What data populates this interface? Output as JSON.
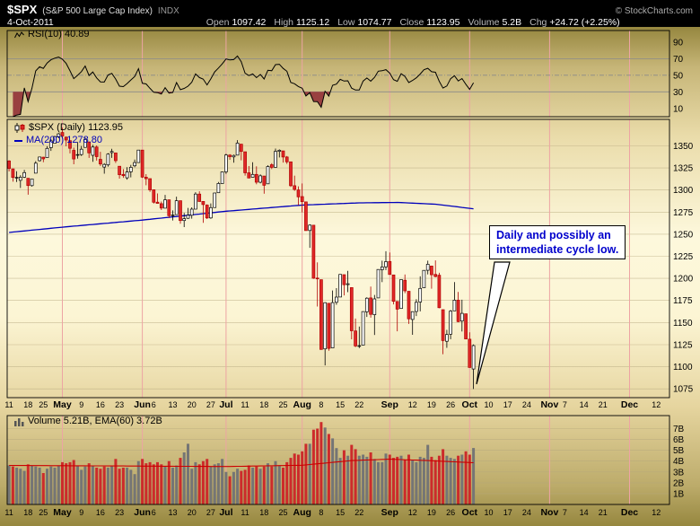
{
  "header": {
    "symbol": "$SPX",
    "symbol_desc": "(S&P 500 Large Cap Index)",
    "exchange": "INDX",
    "copyright": "© StockCharts.com",
    "date": "4-Oct-2011",
    "fields": [
      {
        "label": "Open",
        "value": "1097.42"
      },
      {
        "label": "High",
        "value": "1125.12"
      },
      {
        "label": "Low",
        "value": "1074.77"
      },
      {
        "label": "Close",
        "value": "1123.95"
      },
      {
        "label": "Volume",
        "value": "5.2B"
      },
      {
        "label": "Chg",
        "value": "+24.72 (+2.25%)"
      }
    ]
  },
  "rsi_panel": {
    "label": "RSI(10) 40.89",
    "yticks": [
      90,
      70,
      50,
      30,
      10
    ],
    "overbought": 70,
    "midline": 50,
    "oversold": 30
  },
  "price_panel": {
    "label": "$SPX (Daily) 1123.95",
    "ma_label": "MA(200) 1278.80",
    "yticks": [
      1350,
      1325,
      1300,
      1275,
      1250,
      1225,
      1200,
      1175,
      1150,
      1125,
      1100,
      1075
    ]
  },
  "volume_panel": {
    "label": "Volume 5.21B, EMA(60) 3.72B",
    "yticks": [
      {
        "v": 7,
        "label": "7B"
      },
      {
        "v": 6,
        "label": "6B"
      },
      {
        "v": 5,
        "label": "5B"
      },
      {
        "v": 4,
        "label": "4B"
      },
      {
        "v": 3,
        "label": "3B"
      },
      {
        "v": 2,
        "label": "2B"
      },
      {
        "v": 1,
        "label": "1B"
      }
    ]
  },
  "annotation": {
    "line1": "Daily and possibly an",
    "line2": "intermediate cycle low."
  },
  "xaxis": {
    "total_slots": 174,
    "month_lines": [
      14,
      35,
      57,
      77,
      100,
      121,
      142,
      163
    ],
    "ticks": [
      [
        0,
        "11",
        0
      ],
      [
        5,
        "18",
        0
      ],
      [
        9,
        "25",
        0
      ],
      [
        14,
        "May",
        1
      ],
      [
        19,
        "9",
        0
      ],
      [
        24,
        "16",
        0
      ],
      [
        29,
        "23",
        0
      ],
      [
        35,
        "Jun",
        1
      ],
      [
        38,
        "6",
        0
      ],
      [
        43,
        "13",
        0
      ],
      [
        48,
        "20",
        0
      ],
      [
        53,
        "27",
        0
      ],
      [
        57,
        "Jul",
        1
      ],
      [
        62,
        "11",
        0
      ],
      [
        67,
        "18",
        0
      ],
      [
        72,
        "25",
        0
      ],
      [
        77,
        "Aug",
        1
      ],
      [
        82,
        "8",
        0
      ],
      [
        87,
        "15",
        0
      ],
      [
        92,
        "22",
        0
      ],
      [
        100,
        "Sep",
        1
      ],
      [
        106,
        "12",
        0
      ],
      [
        111,
        "19",
        0
      ],
      [
        116,
        "26",
        0
      ],
      [
        121,
        "Oct",
        1
      ],
      [
        126,
        "10",
        0
      ],
      [
        131,
        "17",
        0
      ],
      [
        136,
        "24",
        0
      ],
      [
        142,
        "Nov",
        1
      ],
      [
        146,
        "7",
        0
      ],
      [
        151,
        "14",
        0
      ],
      [
        156,
        "21",
        0
      ],
      [
        163,
        "Dec",
        1
      ],
      [
        170,
        "12",
        0
      ]
    ]
  },
  "chart_data": {
    "type": "candlestick",
    "title": "$SPX (S&P 500 Large Cap Index) Daily",
    "date_range": {
      "start": "2011-04-11",
      "end": "2011-10-04"
    },
    "rsi": {
      "period": 10,
      "last": 40.89,
      "range": [
        0,
        100
      ]
    },
    "price": {
      "ylim": [
        1065,
        1380
      ],
      "ma200_last": 1278.8,
      "ma200_anchors": [
        [
          0,
          1252
        ],
        [
          14,
          1258
        ],
        [
          35,
          1266
        ],
        [
          57,
          1276
        ],
        [
          77,
          1283
        ],
        [
          92,
          1285.5
        ],
        [
          102,
          1286
        ],
        [
          112,
          1284
        ],
        [
          122,
          1278.8
        ]
      ],
      "ohlc": [
        [
          1333.0,
          1333.8,
          1321.1,
          1324.5
        ],
        [
          1324.0,
          1324.0,
          1309.5,
          1314.2
        ],
        [
          1314.0,
          1321.3,
          1309.2,
          1314.4
        ],
        [
          1311.0,
          1316.8,
          1302.4,
          1314.5
        ],
        [
          1314.5,
          1322.9,
          1313.7,
          1319.7
        ],
        [
          1313.3,
          1313.3,
          1294.7,
          1305.1
        ],
        [
          1305.0,
          1312.7,
          1303.9,
          1312.6
        ],
        [
          1319.1,
          1332.7,
          1319.1,
          1330.4
        ],
        [
          1333.2,
          1337.5,
          1332.3,
          1337.4
        ],
        [
          1337.2,
          1337.6,
          1331.5,
          1335.3
        ],
        [
          1336.7,
          1349.6,
          1336.7,
          1347.2
        ],
        [
          1348.0,
          1357.5,
          1344.3,
          1355.7
        ],
        [
          1353.0,
          1361.4,
          1353.0,
          1360.5
        ],
        [
          1360.1,
          1364.6,
          1358.7,
          1363.6
        ],
        [
          1365.2,
          1370.6,
          1358.6,
          1361.2
        ],
        [
          1359.8,
          1360.8,
          1349.5,
          1356.6
        ],
        [
          1355.9,
          1355.9,
          1341.5,
          1347.3
        ],
        [
          1344.9,
          1348.0,
          1329.2,
          1335.1
        ],
        [
          1340.2,
          1354.4,
          1335.6,
          1340.2
        ],
        [
          1340.2,
          1349.8,
          1338.6,
          1346.3
        ],
        [
          1348.3,
          1359.4,
          1348.3,
          1357.2
        ],
        [
          1354.5,
          1354.5,
          1336.4,
          1342.1
        ],
        [
          1339.4,
          1351.1,
          1332.0,
          1348.7
        ],
        [
          1348.7,
          1350.5,
          1333.4,
          1337.8
        ],
        [
          1334.8,
          1343.3,
          1327.3,
          1329.5
        ],
        [
          1326.1,
          1330.4,
          1318.5,
          1329.0
        ],
        [
          1328.5,
          1341.8,
          1326.6,
          1340.7
        ],
        [
          1342.4,
          1346.8,
          1336.4,
          1343.6
        ],
        [
          1342.0,
          1342.0,
          1330.7,
          1333.3
        ],
        [
          1327.0,
          1327.0,
          1312.9,
          1317.4
        ],
        [
          1317.7,
          1323.7,
          1313.9,
          1316.3
        ],
        [
          1313.9,
          1325.9,
          1311.8,
          1320.5
        ],
        [
          1320.6,
          1328.5,
          1314.4,
          1325.7
        ],
        [
          1327.4,
          1334.6,
          1325.7,
          1331.1
        ],
        [
          1331.1,
          1345.2,
          1331.1,
          1345.2
        ],
        [
          1345.2,
          1345.2,
          1313.7,
          1314.6
        ],
        [
          1314.6,
          1318.0,
          1305.4,
          1312.9
        ],
        [
          1312.9,
          1312.9,
          1297.9,
          1300.2
        ],
        [
          1300.3,
          1300.3,
          1284.7,
          1286.2
        ],
        [
          1286.3,
          1296.2,
          1284.7,
          1284.9
        ],
        [
          1284.6,
          1287.0,
          1277.4,
          1279.6
        ],
        [
          1279.6,
          1294.5,
          1279.6,
          1289.0
        ],
        [
          1289.0,
          1289.0,
          1268.3,
          1271.0
        ],
        [
          1271.0,
          1277.0,
          1265.6,
          1271.8
        ],
        [
          1272.2,
          1292.5,
          1272.2,
          1287.9
        ],
        [
          1287.9,
          1287.9,
          1261.9,
          1265.4
        ],
        [
          1265.5,
          1274.1,
          1258.1,
          1267.6
        ],
        [
          1268.0,
          1279.8,
          1267.4,
          1271.5
        ],
        [
          1271.5,
          1280.4,
          1267.6,
          1278.4
        ],
        [
          1278.4,
          1297.6,
          1278.4,
          1295.5
        ],
        [
          1295.5,
          1298.6,
          1286.8,
          1287.1
        ],
        [
          1287.1,
          1287.1,
          1262.9,
          1283.5
        ],
        [
          1283.0,
          1283.9,
          1267.2,
          1268.5
        ],
        [
          1268.4,
          1284.9,
          1267.5,
          1280.1
        ],
        [
          1280.2,
          1296.8,
          1280.2,
          1296.7
        ],
        [
          1296.9,
          1309.2,
          1296.9,
          1307.4
        ],
        [
          1307.4,
          1321.0,
          1307.4,
          1320.6
        ],
        [
          1320.6,
          1341.0,
          1318.2,
          1339.7
        ],
        [
          1339.6,
          1340.6,
          1334.3,
          1337.9
        ],
        [
          1337.6,
          1340.1,
          1330.9,
          1339.2
        ],
        [
          1339.6,
          1356.5,
          1339.6,
          1353.2
        ],
        [
          1352.0,
          1352.0,
          1333.7,
          1343.8
        ],
        [
          1343.3,
          1343.3,
          1316.4,
          1319.5
        ],
        [
          1319.5,
          1327.2,
          1313.3,
          1313.6
        ],
        [
          1314.4,
          1331.5,
          1314.4,
          1317.7
        ],
        [
          1317.7,
          1326.9,
          1306.5,
          1308.9
        ],
        [
          1308.9,
          1317.7,
          1307.5,
          1316.1
        ],
        [
          1315.9,
          1315.9,
          1295.9,
          1305.4
        ],
        [
          1307.1,
          1328.1,
          1307.1,
          1326.7
        ],
        [
          1328.7,
          1330.4,
          1323.7,
          1325.8
        ],
        [
          1325.7,
          1347.0,
          1325.7,
          1343.8
        ],
        [
          1343.8,
          1346.1,
          1336.9,
          1345.0
        ],
        [
          1344.3,
          1344.3,
          1331.1,
          1337.4
        ],
        [
          1337.4,
          1338.5,
          1329.6,
          1331.9
        ],
        [
          1331.9,
          1331.9,
          1303.5,
          1304.9
        ],
        [
          1304.9,
          1316.3,
          1299.1,
          1300.7
        ],
        [
          1300.1,
          1304.2,
          1282.9,
          1292.3
        ],
        [
          1292.6,
          1307.4,
          1274.7,
          1286.9
        ],
        [
          1286.6,
          1286.6,
          1254.0,
          1254.1
        ],
        [
          1254.2,
          1261.2,
          1234.6,
          1260.3
        ],
        [
          1260.2,
          1260.2,
          1199.5,
          1200.1
        ],
        [
          1200.3,
          1218.1,
          1168.1,
          1199.4
        ],
        [
          1198.5,
          1198.5,
          1119.3,
          1119.5
        ],
        [
          1120.2,
          1172.9,
          1101.5,
          1172.5
        ],
        [
          1171.8,
          1171.8,
          1118.0,
          1120.8
        ],
        [
          1121.3,
          1186.3,
          1121.3,
          1172.6
        ],
        [
          1172.9,
          1189.0,
          1170.2,
          1178.8
        ],
        [
          1178.9,
          1204.5,
          1178.9,
          1204.5
        ],
        [
          1204.2,
          1204.2,
          1180.7,
          1192.8
        ],
        [
          1192.9,
          1208.5,
          1184.4,
          1193.9
        ],
        [
          1189.6,
          1189.6,
          1131.0,
          1140.7
        ],
        [
          1140.5,
          1154.5,
          1122.1,
          1123.5
        ],
        [
          1123.6,
          1145.5,
          1121.1,
          1123.8
        ],
        [
          1124.4,
          1162.4,
          1124.4,
          1162.4
        ],
        [
          1162.2,
          1178.6,
          1156.3,
          1177.6
        ],
        [
          1177.9,
          1190.7,
          1155.5,
          1159.3
        ],
        [
          1158.9,
          1181.2,
          1135.9,
          1176.8
        ],
        [
          1177.9,
          1210.3,
          1177.9,
          1210.1
        ],
        [
          1209.8,
          1220.1,
          1195.8,
          1212.9
        ],
        [
          1213.0,
          1230.7,
          1209.4,
          1218.9
        ],
        [
          1219.1,
          1229.3,
          1204.2,
          1204.4
        ],
        [
          1203.9,
          1203.9,
          1170.6,
          1174.0
        ],
        [
          1173.9,
          1173.9,
          1140.1,
          1165.2
        ],
        [
          1165.9,
          1198.6,
          1165.9,
          1198.6
        ],
        [
          1197.9,
          1204.4,
          1183.3,
          1185.9
        ],
        [
          1185.4,
          1185.4,
          1148.4,
          1154.2
        ],
        [
          1153.5,
          1162.6,
          1136.1,
          1162.3
        ],
        [
          1162.5,
          1176.4,
          1157.4,
          1172.9
        ],
        [
          1173.3,
          1202.4,
          1162.7,
          1188.7
        ],
        [
          1189.4,
          1209.1,
          1189.4,
          1209.1
        ],
        [
          1209.2,
          1220.1,
          1204.5,
          1216.0
        ],
        [
          1214.0,
          1214.0,
          1188.4,
          1204.1
        ],
        [
          1204.5,
          1220.4,
          1201.3,
          1202.1
        ],
        [
          1203.6,
          1206.3,
          1166.2,
          1166.8
        ],
        [
          1164.6,
          1164.6,
          1114.2,
          1129.6
        ],
        [
          1128.8,
          1141.7,
          1121.4,
          1136.4
        ],
        [
          1136.9,
          1164.2,
          1131.1,
          1163.0
        ],
        [
          1163.3,
          1195.9,
          1163.3,
          1175.4
        ],
        [
          1175.4,
          1184.7,
          1150.4,
          1151.1
        ],
        [
          1151.7,
          1175.9,
          1139.9,
          1160.4
        ],
        [
          1159.9,
          1159.9,
          1131.3,
          1131.4
        ],
        [
          1131.2,
          1139.0,
          1098.9,
          1099.2
        ],
        [
          1097.42,
          1125.12,
          1074.77,
          1123.95
        ]
      ]
    },
    "volume": {
      "unit": "B",
      "last": 5.21,
      "ema_period": 60,
      "ema_last": 3.72,
      "ema_anchors": [
        [
          0,
          3.6
        ],
        [
          30,
          3.55
        ],
        [
          57,
          3.5
        ],
        [
          77,
          3.62
        ],
        [
          90,
          4.05
        ],
        [
          100,
          4.18
        ],
        [
          110,
          4.05
        ],
        [
          122,
          3.85
        ]
      ],
      "values": [
        3.6,
        3.5,
        3.4,
        3.3,
        3.1,
        3.7,
        3.6,
        3.5,
        3.4,
        2.9,
        3.3,
        3.5,
        3.4,
        3.6,
        3.9,
        3.8,
        3.9,
        4.1,
        3.6,
        3.2,
        3.5,
        3.8,
        3.6,
        3.4,
        3.3,
        3.5,
        3.4,
        3.6,
        4.2,
        3.3,
        3.4,
        3.4,
        3.2,
        2.8,
        4.0,
        4.2,
        3.8,
        3.9,
        3.7,
        3.9,
        3.7,
        3.5,
        4.0,
        3.4,
        3.6,
        4.3,
        4.8,
        5.6,
        3.3,
        3.9,
        3.7,
        4.0,
        4.2,
        3.5,
        3.7,
        3.8,
        4.2,
        3.0,
        2.6,
        3.0,
        3.3,
        3.1,
        3.2,
        3.6,
        3.4,
        3.5,
        3.3,
        3.5,
        3.8,
        3.5,
        4.0,
        3.6,
        3.4,
        3.9,
        4.3,
        4.7,
        4.6,
        4.9,
        5.6,
        5.6,
        6.9,
        7.0,
        7.6,
        7.1,
        6.5,
        6.1,
        5.2,
        4.3,
        5.0,
        4.5,
        5.5,
        5.1,
        4.5,
        4.6,
        4.4,
        4.8,
        4.2,
        3.9,
        3.9,
        4.7,
        4.6,
        4.3,
        4.4,
        4.5,
        4.1,
        4.6,
        4.1,
        3.9,
        4.4,
        4.3,
        5.5,
        4.4,
        4.1,
        4.5,
        5.1,
        4.5,
        4.3,
        4.2,
        4.5,
        4.6,
        4.9,
        4.6,
        5.21
      ]
    },
    "colors": {
      "up": "#ffffff",
      "down": "#e02828",
      "down_stroke": "#b00000",
      "ma200": "#0000bb",
      "rsi": "#000000",
      "rsi_fill": "#994040",
      "vol_up": "#757575",
      "vol_down": "#cc2b2b",
      "ema": "#cc0000",
      "month_grid": "#eda4a4",
      "grid": "#b3a67c"
    }
  }
}
